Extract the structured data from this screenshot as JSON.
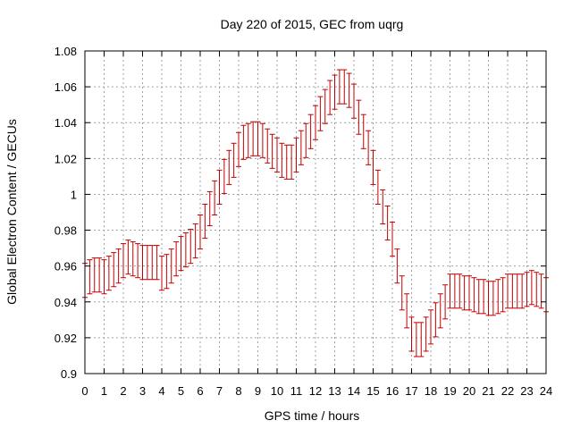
{
  "chart_data": {
    "type": "scatter",
    "title": "Day 220 of 2015, GEC from uqrg",
    "xlabel": "GPS time / hours",
    "ylabel": "Global Electron Content / GECUs",
    "xlim": [
      0,
      24
    ],
    "ylim": [
      0.9,
      1.08
    ],
    "xticks": [
      0,
      1,
      2,
      3,
      4,
      5,
      6,
      7,
      8,
      9,
      10,
      11,
      12,
      13,
      14,
      15,
      16,
      17,
      18,
      19,
      20,
      21,
      22,
      23,
      24
    ],
    "yticks": [
      0.9,
      0.92,
      0.94,
      0.96,
      0.98,
      1,
      1.02,
      1.04,
      1.06,
      1.08
    ],
    "ytick_labels": [
      "0.9",
      "0.92",
      "0.94",
      "0.96",
      "0.98",
      "1",
      "1.02",
      "1.04",
      "1.06",
      "1.08"
    ],
    "grid": true,
    "error": 0.0095,
    "series": [
      {
        "color": "#c00000",
        "x": [
          0,
          0.25,
          0.5,
          0.75,
          1,
          1.25,
          1.5,
          1.75,
          2,
          2.25,
          2.5,
          2.75,
          3,
          3.25,
          3.5,
          3.75,
          4,
          4.25,
          4.5,
          4.75,
          5,
          5.25,
          5.5,
          5.75,
          6,
          6.25,
          6.5,
          6.75,
          7,
          7.25,
          7.5,
          7.75,
          8,
          8.25,
          8.5,
          8.75,
          9,
          9.25,
          9.5,
          9.75,
          10,
          10.25,
          10.5,
          10.75,
          11,
          11.25,
          11.5,
          11.75,
          12,
          12.25,
          12.5,
          12.75,
          13,
          13.25,
          13.5,
          13.75,
          14,
          14.25,
          14.5,
          14.75,
          15,
          15.25,
          15.5,
          15.75,
          16,
          16.25,
          16.5,
          16.75,
          17,
          17.25,
          17.5,
          17.75,
          18,
          18.25,
          18.5,
          18.75,
          19,
          19.25,
          19.5,
          19.75,
          20,
          20.25,
          20.5,
          20.75,
          21,
          21.25,
          21.5,
          21.75,
          22,
          22.25,
          22.5,
          22.75,
          23,
          23.25,
          23.5,
          23.75,
          24
        ],
        "y": [
          0.952,
          0.954,
          0.955,
          0.955,
          0.954,
          0.956,
          0.958,
          0.96,
          0.963,
          0.965,
          0.964,
          0.963,
          0.962,
          0.962,
          0.962,
          0.962,
          0.956,
          0.957,
          0.96,
          0.964,
          0.967,
          0.969,
          0.971,
          0.974,
          0.979,
          0.985,
          0.992,
          0.998,
          1.004,
          1.01,
          1.015,
          1.019,
          1.025,
          1.029,
          1.03,
          1.031,
          1.031,
          1.03,
          1.027,
          1.024,
          1.022,
          1.019,
          1.018,
          1.018,
          1.022,
          1.026,
          1.03,
          1.035,
          1.04,
          1.045,
          1.049,
          1.054,
          1.057,
          1.06,
          1.06,
          1.058,
          1.052,
          1.043,
          1.035,
          1.026,
          1.015,
          1.004,
          0.993,
          0.984,
          0.975,
          0.96,
          0.945,
          0.935,
          0.922,
          0.919,
          0.919,
          0.922,
          0.926,
          0.93,
          0.935,
          0.94,
          0.946,
          0.946,
          0.946,
          0.945,
          0.945,
          0.944,
          0.943,
          0.943,
          0.942,
          0.942,
          0.943,
          0.944,
          0.946,
          0.946,
          0.946,
          0.946,
          0.947,
          0.948,
          0.947,
          0.946,
          0.944
        ]
      }
    ]
  }
}
